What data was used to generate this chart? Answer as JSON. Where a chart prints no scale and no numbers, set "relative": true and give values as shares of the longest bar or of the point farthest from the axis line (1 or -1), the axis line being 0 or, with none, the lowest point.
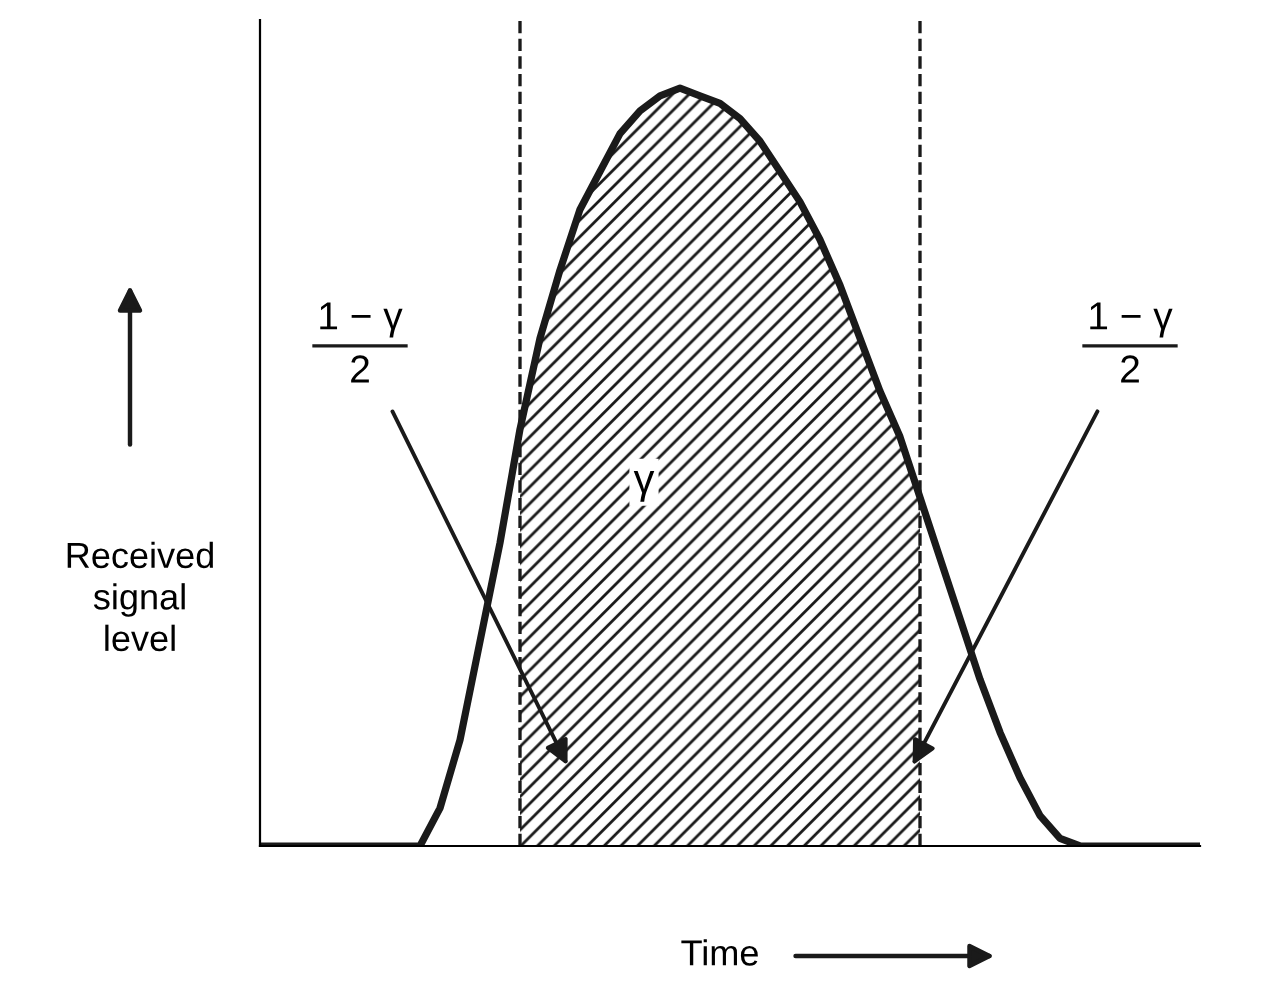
{
  "chart_data": {
    "type": "line",
    "relative": true,
    "xlabel": "Time",
    "ylabel": "Received\nsignal\nlevel",
    "categories": [
      null,
      null,
      null,
      null,
      null,
      null,
      null,
      null,
      null,
      null,
      null,
      null,
      null,
      null,
      null,
      null,
      null,
      null,
      null,
      null,
      null,
      null,
      null,
      null,
      null,
      null,
      null,
      null,
      null,
      null,
      null,
      null,
      null,
      null,
      null,
      null,
      null,
      null,
      null,
      null,
      null,
      null,
      null,
      null,
      null,
      null,
      null,
      null
    ],
    "series": [
      {
        "color": "#1a1a1a",
        "values": [
          0,
          0,
          0,
          0,
          0,
          0,
          0,
          0,
          0,
          0.05,
          0.14,
          0.27,
          0.4,
          0.55,
          0.67,
          0.76,
          0.84,
          0.89,
          0.94,
          0.97,
          0.99,
          1.0,
          0.99,
          0.98,
          0.96,
          0.93,
          0.89,
          0.85,
          0.8,
          0.74,
          0.67,
          0.6,
          0.54,
          0.46,
          0.38,
          0.3,
          0.22,
          0.15,
          0.09,
          0.04,
          0.01,
          0,
          0,
          0,
          0,
          0,
          0,
          0
        ]
      },
      {
        "type": "area",
        "color": "#1a1a1a",
        "values": [
          null,
          null,
          null,
          null,
          null,
          null,
          null,
          null,
          null,
          null,
          null,
          null,
          null,
          0.55,
          0.67,
          0.76,
          0.84,
          0.89,
          0.94,
          0.97,
          0.99,
          1.0,
          0.99,
          0.98,
          0.96,
          0.93,
          0.89,
          0.85,
          0.8,
          0.74,
          0.67,
          0.6,
          0.54,
          0.46,
          null,
          null,
          null,
          null,
          null,
          null,
          null,
          null,
          null,
          null,
          null,
          null,
          null,
          null
        ]
      }
    ],
    "annotations": [
      "γ",
      "1 − γ\n2",
      "1 − γ\n2"
    ],
    "tick_labels": false,
    "line_style": "solid",
    "marker": "none"
  }
}
